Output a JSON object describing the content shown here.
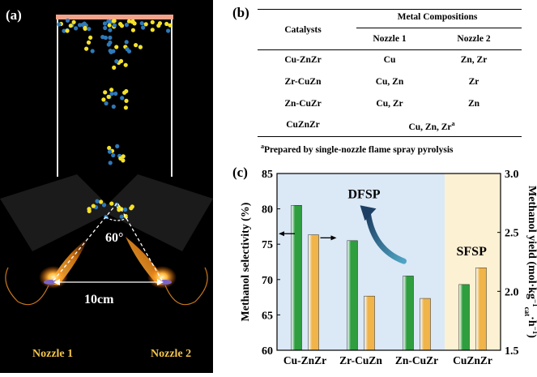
{
  "panel_a": {
    "label": "(a)",
    "angle": "60°",
    "distance": "10cm",
    "nozzle1": "Nozzle 1",
    "nozzle2": "Nozzle 2",
    "colors": {
      "background": "#000000",
      "plate": "#f2a38a",
      "blue_particle": "#2f79b7",
      "yellow_particle": "#f4e12a",
      "flame": "#ff9a1f"
    }
  },
  "panel_b": {
    "label": "(b)",
    "header_catalysts": "Catalysts",
    "header_group": "Metal Compositions",
    "header_n1": "Nozzle 1",
    "header_n2": "Nozzle 2",
    "rows": [
      {
        "catalyst": "Cu-ZnZr",
        "n1": "Cu",
        "n2": "Zn, Zr"
      },
      {
        "catalyst": "Zr-CuZn",
        "n1": "Cu, Zn",
        "n2": "Zr"
      },
      {
        "catalyst": "Zn-CuZr",
        "n1": "Cu, Zr",
        "n2": "Zn"
      }
    ],
    "last_row": {
      "catalyst": "CuZnZr",
      "merged": "Cu, Zn, Zr",
      "sup": "a"
    },
    "footnote_sup": "a",
    "footnote": "Prepared by single-nozzle flame spray pyrolysis"
  },
  "chart_data": {
    "type": "bar",
    "label": "(c)",
    "categories": [
      "Cu-ZnZr",
      "Zr-CuZn",
      "Zn-CuZr",
      "CuZnZr"
    ],
    "series": [
      {
        "name": "Methanol selectivity (%)",
        "axis": "left",
        "color": "#2e9e3e",
        "values": [
          80.5,
          75.5,
          70.5,
          69.3
        ]
      },
      {
        "name": "Methanol yield",
        "axis": "right",
        "color": "#f0b44a",
        "values": [
          2.48,
          1.96,
          1.94,
          2.2
        ]
      }
    ],
    "left_axis": {
      "label": "Methanol selectivity (%)",
      "ylim": [
        60,
        85
      ],
      "ticks": [
        "60",
        "65",
        "70",
        "75",
        "80",
        "85"
      ]
    },
    "right_axis": {
      "label_main": "Methanol yield (mol·kg",
      "label_sub": "cat",
      "label_tail": "·h",
      "label_sup1": "−1",
      "label_sup2": "−1",
      "label_close": ")",
      "ylim": [
        1.5,
        3.0
      ],
      "ticks": [
        "1.5",
        "2.0",
        "2.5",
        "3.0"
      ]
    },
    "regions": [
      {
        "name": "DFSP",
        "categories": [
          "Cu-ZnZr",
          "Zr-CuZn",
          "Zn-CuZr"
        ],
        "color": "#dbe8f6"
      },
      {
        "name": "SFSP",
        "categories": [
          "CuZnZr"
        ],
        "color": "#fdf1d3"
      }
    ],
    "annotations": [
      "DFSP",
      "SFSP"
    ]
  }
}
